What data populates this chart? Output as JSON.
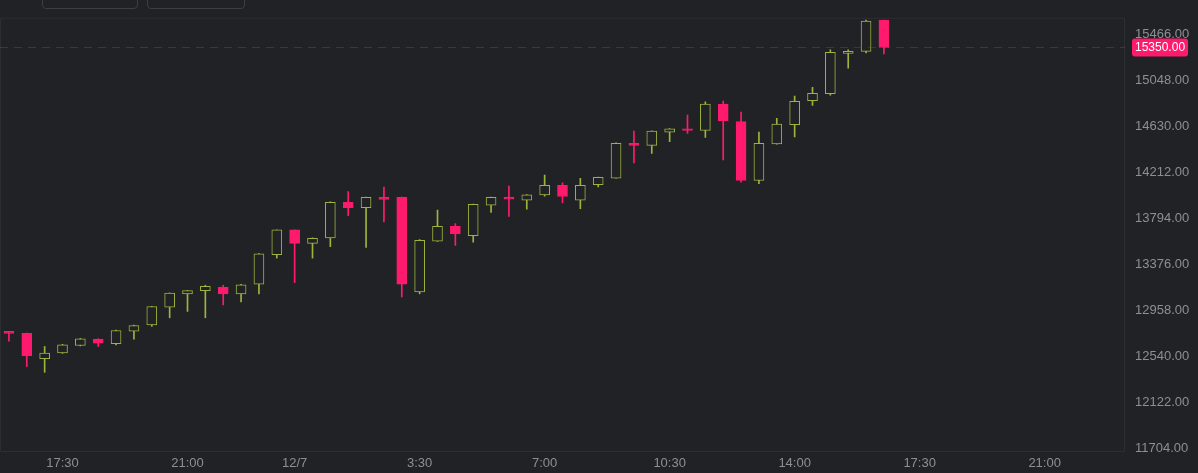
{
  "chart_data": {
    "type": "candlestick",
    "x": [
      "--12-06T16:00",
      "--12-06T16:30",
      "--12-06T17:00",
      "--12-06T17:30",
      "--12-06T18:00",
      "--12-06T18:30",
      "--12-06T19:00",
      "--12-06T19:30",
      "--12-06T20:00",
      "--12-06T20:30",
      "--12-06T21:00",
      "--12-06T21:30",
      "--12-06T22:00",
      "--12-06T22:30",
      "--12-06T23:00",
      "--12-06T23:30",
      "--12-07T00:00",
      "--12-07T00:30",
      "--12-07T01:00",
      "--12-07T01:30",
      "--12-07T02:00",
      "--12-07T02:30",
      "--12-07T03:00",
      "--12-07T03:30",
      "--12-07T04:00",
      "--12-07T04:30",
      "--12-07T05:00",
      "--12-07T05:30",
      "--12-07T06:00",
      "--12-07T06:30",
      "--12-07T07:00",
      "--12-07T07:30",
      "--12-07T08:00",
      "--12-07T08:30",
      "--12-07T09:00",
      "--12-07T09:30",
      "--12-07T10:00",
      "--12-07T10:30",
      "--12-07T11:00",
      "--12-07T11:30",
      "--12-07T12:00",
      "--12-07T12:30",
      "--12-07T13:00",
      "--12-07T13:30",
      "--12-07T14:00",
      "--12-07T14:30",
      "--12-07T15:00",
      "--12-07T15:30",
      "--12-07T16:00",
      "--12-07T16:30"
    ],
    "ohlc": [
      [
        12767,
        12767,
        12679,
        12749
      ],
      [
        12750,
        12752,
        12447,
        12544
      ],
      [
        12520,
        12630,
        12395,
        12569
      ],
      [
        12572,
        12650,
        12567,
        12645
      ],
      [
        12639,
        12704,
        12635,
        12699
      ],
      [
        12697,
        12700,
        12630,
        12659
      ],
      [
        12656,
        12778,
        12645,
        12775
      ],
      [
        12769,
        12825,
        12697,
        12819
      ],
      [
        12825,
        12995,
        12813,
        12993
      ],
      [
        12987,
        13117,
        12891,
        13115
      ],
      [
        13109,
        13140,
        12949,
        13138
      ],
      [
        13138,
        13187,
        12891,
        13178
      ],
      [
        13167,
        13187,
        13008,
        13109
      ],
      [
        13109,
        13195,
        13036,
        13191
      ],
      [
        13196,
        13475,
        13109,
        13472
      ],
      [
        13466,
        13692,
        13434,
        13690
      ],
      [
        13690,
        13692,
        13211,
        13568
      ],
      [
        13568,
        13618,
        13434,
        13614
      ],
      [
        13617,
        13946,
        13539,
        13942
      ],
      [
        13942,
        14038,
        13820,
        13893
      ],
      [
        13893,
        13990,
        13530,
        13986
      ],
      [
        13986,
        14081,
        13762,
        13968
      ],
      [
        13988,
        13990,
        13080,
        13196
      ],
      [
        13126,
        13603,
        13109,
        13596
      ],
      [
        13588,
        13870,
        13585,
        13724
      ],
      [
        13724,
        13748,
        13550,
        13655
      ],
      [
        13637,
        13925,
        13579,
        13922
      ],
      [
        13916,
        13990,
        13849,
        13986
      ],
      [
        13986,
        14088,
        13812,
        13971
      ],
      [
        13960,
        14012,
        13879,
        14009
      ],
      [
        14009,
        14189,
        13998,
        14096
      ],
      [
        14096,
        14119,
        13936,
        13994
      ],
      [
        13960,
        14160,
        13884,
        14096
      ],
      [
        14101,
        14170,
        14081,
        14168
      ],
      [
        14162,
        14483,
        14160,
        14479
      ],
      [
        14479,
        14589,
        14299,
        14459
      ],
      [
        14459,
        14592,
        14386,
        14589
      ],
      [
        14580,
        14613,
        14493,
        14610
      ],
      [
        14610,
        14735,
        14569,
        14595
      ],
      [
        14595,
        14856,
        14532,
        14836
      ],
      [
        14836,
        14863,
        14328,
        14682
      ],
      [
        14676,
        14763,
        14125,
        14140
      ],
      [
        14140,
        14580,
        14110,
        14479
      ],
      [
        14473,
        14706,
        14470,
        14654
      ],
      [
        14647,
        14909,
        14537,
        14859
      ],
      [
        14865,
        14987,
        14822,
        14932
      ],
      [
        14929,
        15329,
        14917,
        15307
      ],
      [
        15295,
        15329,
        15161,
        15315
      ],
      [
        15315,
        15600,
        15300,
        15590
      ],
      [
        15600,
        15600,
        15292,
        15350
      ]
    ],
    "colors": [
      "#ff1a6e",
      "#ff1a6e",
      "#9bb53c",
      "#9bb53c",
      "#9bb53c",
      "#ff1a6e",
      "#9bb53c",
      "#9bb53c",
      "#9bb53c",
      "#9bb53c",
      "#9bb53c",
      "#9bb53c",
      "#ff1a6e",
      "#9bb53c",
      "#9bb53c",
      "#9bb53c",
      "#ff1a6e",
      "#9bb53c",
      "#9bb53c",
      "#ff1a6e",
      "#9bb53c",
      "#ff1a6e",
      "#ff1a6e",
      "#9bb53c",
      "#9bb53c",
      "#ff1a6e",
      "#9bb53c",
      "#9bb53c",
      "#ff1a6e",
      "#9bb53c",
      "#9bb53c",
      "#ff1a6e",
      "#9bb53c",
      "#9bb53c",
      "#9bb53c",
      "#ff1a6e",
      "#9bb53c",
      "#9bb53c",
      "#ff1a6e",
      "#9bb53c",
      "#ff1a6e",
      "#ff1a6e",
      "#9bb53c",
      "#9bb53c",
      "#9bb53c",
      "#9bb53c",
      "#9bb53c",
      "#9bb53c",
      "#9bb53c",
      "#ff1a6e"
    ],
    "xlim": [
      "--12-06T15:45",
      "--12-07T23:15"
    ],
    "xticks": [
      {
        "value": "--12-06T17:30",
        "label": "17:30"
      },
      {
        "value": "--12-06T21:00",
        "label": "21:00"
      },
      {
        "value": "--12-07T00:00",
        "label": "12/7"
      },
      {
        "value": "--12-07T03:30",
        "label": "3:30"
      },
      {
        "value": "--12-07T07:00",
        "label": "7:00"
      },
      {
        "value": "--12-07T10:30",
        "label": "10:30"
      },
      {
        "value": "--12-07T14:00",
        "label": "14:00"
      },
      {
        "value": "--12-07T17:30",
        "label": "17:30"
      },
      {
        "value": "--12-07T21:00",
        "label": "21:00"
      }
    ],
    "ylim": [
      11670,
      15620
    ],
    "yticks": [
      {
        "value": 11704,
        "label": "11704.00"
      },
      {
        "value": 12122,
        "label": "12122.00"
      },
      {
        "value": 12540,
        "label": "12540.00"
      },
      {
        "value": 12958,
        "label": "12958.00"
      },
      {
        "value": 13376,
        "label": "13376.00"
      },
      {
        "value": 13794,
        "label": "13794.00"
      },
      {
        "value": 14212,
        "label": "14212.00"
      },
      {
        "value": 14630,
        "label": "14630.00"
      },
      {
        "value": 15048,
        "label": "15048.00"
      },
      {
        "value": 15466,
        "label": "15466.00"
      }
    ],
    "ref_lines": [
      {
        "axis": "y",
        "value": 15350,
        "label": "15350.00",
        "color": "#ff1a6e",
        "line_style": "dashed"
      }
    ],
    "grid": false,
    "legend": false
  }
}
